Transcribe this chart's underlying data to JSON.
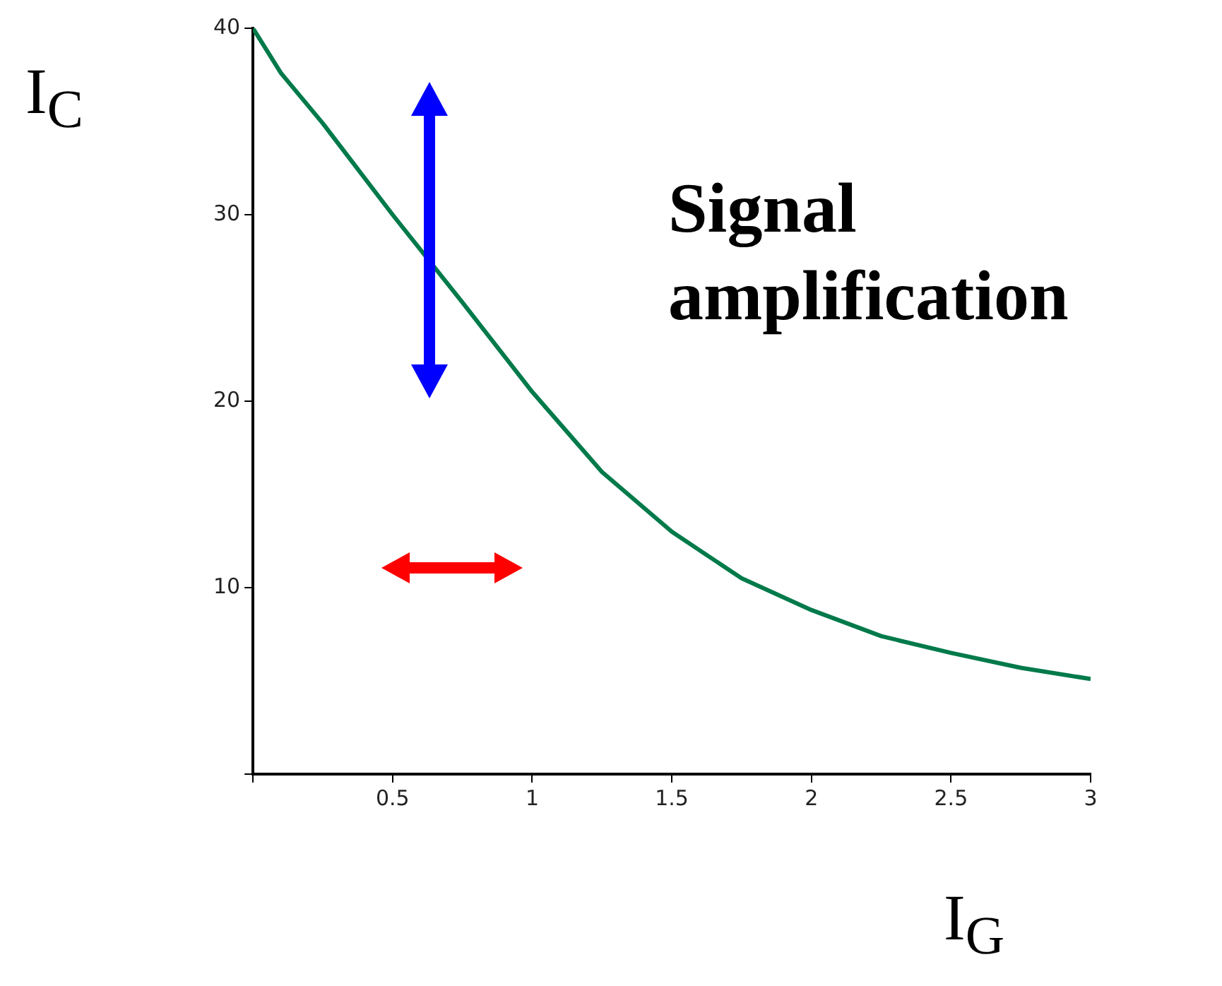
{
  "chart_data": {
    "type": "line",
    "xlabel": "I$_{G}$",
    "ylabel": "I$_{C}$",
    "annotations": [
      "Signal amplification"
    ],
    "x": [
      0,
      0.1,
      0.25,
      0.5,
      0.75,
      1,
      1.25,
      1.5,
      1.75,
      2,
      2.25,
      2.5,
      2.75,
      3
    ],
    "series": [
      {
        "color": "#007a4a",
        "values": [
          40,
          37.6,
          34.9,
          30,
          25.3,
          20.5,
          16.2,
          13,
          10.5,
          8.8,
          7.4,
          6.5,
          5.7,
          5.1
        ]
      }
    ],
    "xlim": [
      0,
      3
    ],
    "xticks": [
      {
        "value": 0,
        "label": null
      },
      0.5,
      1,
      1.5,
      2,
      2.5,
      3
    ],
    "ylim": [
      0,
      40
    ],
    "yticks": [
      {
        "value": 0,
        "label": null
      },
      10,
      20,
      30,
      40
    ],
    "grid": false,
    "legend": false,
    "marker": "none",
    "line_style": "solid"
  }
}
